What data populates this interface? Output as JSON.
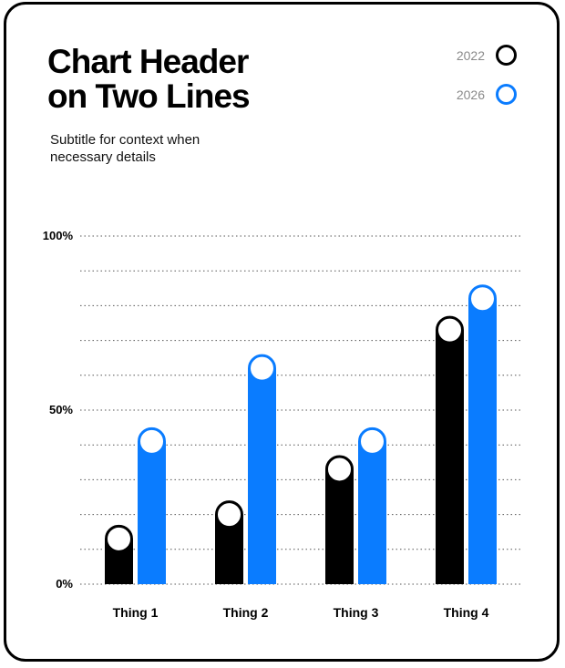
{
  "chart_data": {
    "type": "bar",
    "title": "Chart Header on Two Lines",
    "title_lines": [
      "Chart Header",
      "on Two Lines"
    ],
    "subtitle": "Subtitle for context when necessary details",
    "categories": [
      "Thing 1",
      "Thing 2",
      "Thing 3",
      "Thing 4"
    ],
    "series": [
      {
        "name": "2022",
        "color": "#000000",
        "values": [
          13,
          20,
          33,
          73
        ]
      },
      {
        "name": "2026",
        "color": "#0A7CFF",
        "values": [
          41,
          62,
          41,
          82
        ]
      }
    ],
    "yticks": [
      {
        "value": 0,
        "label": "0%"
      },
      {
        "value": 50,
        "label": "50%"
      },
      {
        "value": 100,
        "label": "100%"
      }
    ],
    "ylim": [
      0,
      100
    ],
    "gridlines_every": 10,
    "grid": true,
    "legend_position": "top-right",
    "marker": "circle"
  }
}
